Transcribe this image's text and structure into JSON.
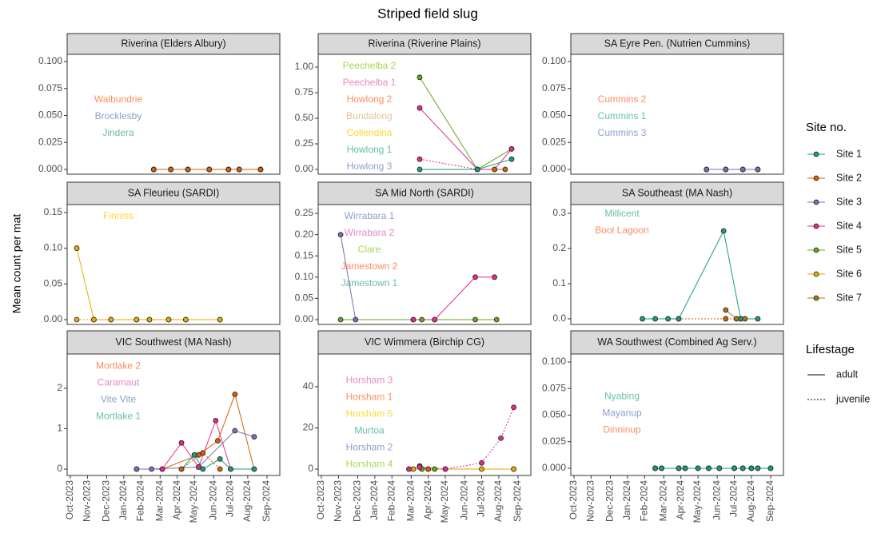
{
  "title": "Striped field slug",
  "y_label": "Mean count per mat",
  "xlim": [
    2023.735,
    2024.73
  ],
  "xticks": [
    {
      "value": 2023.75,
      "label": "Oct-2023"
    },
    {
      "value": 2023.83,
      "label": "Nov-2023"
    },
    {
      "value": 2023.92,
      "label": "Dec-2023"
    },
    {
      "value": 2024,
      "label": "Jan-2024"
    },
    {
      "value": 2024.08,
      "label": "Feb-2024"
    },
    {
      "value": 2024.17,
      "label": "Mar-2024"
    },
    {
      "value": 2024.25,
      "label": "Apr-2024"
    },
    {
      "value": 2024.33,
      "label": "May-2024"
    },
    {
      "value": 2024.42,
      "label": "Jun-2024"
    },
    {
      "value": 2024.5,
      "label": "Jul-2024"
    },
    {
      "value": 2024.58,
      "label": "Aug-2024"
    },
    {
      "value": 2024.67,
      "label": "Sep-2024"
    }
  ],
  "legend": {
    "title": "Site no.",
    "items": [
      {
        "name": "Site 1",
        "color": "#1b9e77"
      },
      {
        "name": "Site 2",
        "color": "#d95f02"
      },
      {
        "name": "Site 3",
        "color": "#7570b3"
      },
      {
        "name": "Site 4",
        "color": "#e7298a"
      },
      {
        "name": "Site 5",
        "color": "#66a61e"
      },
      {
        "name": "Site 6",
        "color": "#e6ab02"
      },
      {
        "name": "Site 7",
        "color": "#a6761d"
      }
    ]
  },
  "lifestage_legend": {
    "title": "Lifestage",
    "items": [
      {
        "name": "adult",
        "dash": false
      },
      {
        "name": "juvenile",
        "dash": true
      }
    ]
  },
  "chart_data": [
    {
      "type": "line",
      "title": "Riverina (Elders Albury)",
      "ylim": [
        -0.0044,
        0.1067
      ],
      "yticks": [
        {
          "value": 0,
          "label": "0.000"
        },
        {
          "value": 0.025,
          "label": "0.025"
        },
        {
          "value": 0.05,
          "label": "0.050"
        },
        {
          "value": 0.075,
          "label": "0.075"
        },
        {
          "value": 0.1,
          "label": "0.100"
        }
      ],
      "labels": [
        {
          "text": "Walbundrie",
          "color": "#fc8d62"
        },
        {
          "text": "Brocklesby",
          "color": "#8da0cb"
        },
        {
          "text": "Jindera",
          "color": "#66c2a5"
        }
      ],
      "series": [
        {
          "name": "Site 1",
          "lifestage": "adult",
          "x": [
            2024.14,
            2024.22,
            2024.3,
            2024.4,
            2024.49,
            2024.54,
            2024.64
          ],
          "values": [
            0,
            0,
            0,
            0,
            0,
            0,
            0
          ]
        },
        {
          "name": "Site 3",
          "lifestage": "adult",
          "x": [
            2024.14,
            2024.22,
            2024.3,
            2024.4,
            2024.49,
            2024.54,
            2024.64
          ],
          "values": [
            0,
            0,
            0,
            0,
            0,
            0,
            0
          ]
        },
        {
          "name": "Site 2",
          "lifestage": "adult",
          "x": [
            2024.14,
            2024.22,
            2024.3,
            2024.4,
            2024.49,
            2024.54,
            2024.64
          ],
          "values": [
            0,
            0,
            0,
            0,
            0,
            0,
            0
          ]
        }
      ]
    },
    {
      "type": "line",
      "title": "Riverina (Riverine Plains)",
      "ylim": [
        -0.047,
        1.125
      ],
      "yticks": [
        {
          "value": 0,
          "label": "0.00"
        },
        {
          "value": 0.25,
          "label": "0.25"
        },
        {
          "value": 0.5,
          "label": "0.50"
        },
        {
          "value": 0.75,
          "label": "0.75"
        },
        {
          "value": 1,
          "label": "1.00"
        }
      ],
      "labels": [
        {
          "text": "Peechelba 2",
          "color": "#a6d854"
        },
        {
          "text": "Peechelba 1",
          "color": "#e78ac3"
        },
        {
          "text": "Howlong 2",
          "color": "#fc8d62"
        },
        {
          "text": "Bundalong",
          "color": "#e5c494"
        },
        {
          "text": "Collendina",
          "color": "#ffd92f"
        },
        {
          "text": "Howlong 1",
          "color": "#66c2a5"
        },
        {
          "text": "Howlong 3",
          "color": "#8da0cb"
        }
      ],
      "series": [
        {
          "name": "Site 5",
          "lifestage": "adult",
          "x": [
            2024.21,
            2024.48,
            2024.64
          ],
          "values": [
            0.9,
            0,
            0.2
          ]
        },
        {
          "name": "Site 4",
          "lifestage": "adult",
          "x": [
            2024.21,
            2024.48,
            2024.56,
            2024.64
          ],
          "values": [
            0.6,
            0,
            0,
            0.2
          ]
        },
        {
          "name": "Site 4",
          "lifestage": "juvenile",
          "x": [
            2024.21,
            2024.48
          ],
          "values": [
            0.1,
            0
          ]
        },
        {
          "name": "Site 1",
          "lifestage": "adult",
          "x": [
            2024.21,
            2024.48,
            2024.64
          ],
          "values": [
            0,
            0,
            0.1
          ]
        },
        {
          "name": "Site 2",
          "lifestage": "adult",
          "x": [
            2024.56,
            2024.61
          ],
          "values": [
            0,
            0
          ]
        }
      ]
    },
    {
      "type": "line",
      "title": "SA Eyre Pen. (Nutrien Cummins)",
      "ylim": [
        -0.0044,
        0.1067
      ],
      "yticks": [
        {
          "value": 0,
          "label": "0.000"
        },
        {
          "value": 0.025,
          "label": "0.025"
        },
        {
          "value": 0.05,
          "label": "0.050"
        },
        {
          "value": 0.075,
          "label": "0.075"
        },
        {
          "value": 0.1,
          "label": "0.100"
        }
      ],
      "labels": [
        {
          "text": "Cummins 2",
          "color": "#fc8d62"
        },
        {
          "text": "Cummins 1",
          "color": "#66c2a5"
        },
        {
          "text": "Cummins 3",
          "color": "#8da0cb"
        }
      ],
      "series": [
        {
          "name": "Site 1",
          "lifestage": "adult",
          "x": [
            2024.37,
            2024.46,
            2024.54,
            2024.61
          ],
          "values": [
            0,
            0,
            0,
            0
          ]
        },
        {
          "name": "Site 3",
          "lifestage": "adult",
          "x": [
            2024.37,
            2024.46,
            2024.54,
            2024.61
          ],
          "values": [
            0,
            0,
            0,
            0
          ]
        }
      ]
    },
    {
      "type": "line",
      "title": "SA Fleurieu (SARDI)",
      "ylim": [
        -0.0067,
        0.161
      ],
      "yticks": [
        {
          "value": 0,
          "label": "0.00"
        },
        {
          "value": 0.05,
          "label": "0.05"
        },
        {
          "value": 0.1,
          "label": "0.10"
        },
        {
          "value": 0.15,
          "label": "0.15"
        }
      ],
      "labels": [
        {
          "text": "Finniss",
          "color": "#ffd92f"
        }
      ],
      "series": [
        {
          "name": "Site 6",
          "lifestage": "adult",
          "x": [
            2023.78,
            2023.86,
            2023.94,
            2024.06,
            2024.12,
            2024.21,
            2024.29,
            2024.45
          ],
          "values": [
            0.1,
            0,
            0,
            0,
            0,
            0,
            0,
            0
          ]
        },
        {
          "name": "Site 6",
          "lifestage": "juvenile",
          "x": [
            2023.78,
            2023.86,
            2023.94,
            2024.06,
            2024.12,
            2024.21,
            2024.29,
            2024.45
          ],
          "values": [
            0,
            0,
            0,
            0,
            0,
            0,
            0,
            0
          ]
        }
      ]
    },
    {
      "type": "line",
      "title": "SA Mid North (SARDI)",
      "ylim": [
        -0.0113,
        0.2707
      ],
      "yticks": [
        {
          "value": 0,
          "label": "0.00"
        },
        {
          "value": 0.05,
          "label": "0.05"
        },
        {
          "value": 0.1,
          "label": "0.10"
        },
        {
          "value": 0.15,
          "label": "0.15"
        },
        {
          "value": 0.2,
          "label": "0.20"
        },
        {
          "value": 0.25,
          "label": "0.25"
        }
      ],
      "labels": [
        {
          "text": "Wirrabara 1",
          "color": "#8da0cb"
        },
        {
          "text": "Wirrabara 2",
          "color": "#e78ac3"
        },
        {
          "text": "Clare",
          "color": "#a6d854"
        },
        {
          "text": "Jamestown 2",
          "color": "#fc8d62"
        },
        {
          "text": "Jamestown 1",
          "color": "#66c2a5"
        }
      ],
      "series": [
        {
          "name": "Site 5",
          "lifestage": "adult",
          "x": [
            2023.84,
            2024.18,
            2024.22,
            2024.28,
            2024.47,
            2024.57
          ],
          "values": [
            0,
            0,
            0,
            0,
            0,
            0
          ]
        },
        {
          "name": "Site 3",
          "lifestage": "adult",
          "x": [
            2023.84,
            2023.91
          ],
          "values": [
            0.2,
            0
          ]
        },
        {
          "name": "Site 4",
          "lifestage": "adult",
          "x": [
            2024.18,
            2024.28,
            2024.47,
            2024.56
          ],
          "values": [
            0,
            0,
            0.1,
            0.1
          ]
        }
      ]
    },
    {
      "type": "line",
      "title": "SA Southeast (MA Nash)",
      "ylim": [
        -0.016,
        0.325
      ],
      "yticks": [
        {
          "value": 0,
          "label": "0.0"
        },
        {
          "value": 0.1,
          "label": "0.1"
        },
        {
          "value": 0.2,
          "label": "0.2"
        },
        {
          "value": 0.3,
          "label": "0.3"
        }
      ],
      "labels": [
        {
          "text": "Millicent",
          "color": "#66c2a5"
        },
        {
          "text": "Bool Lagoon",
          "color": "#fc8d62"
        }
      ],
      "series": [
        {
          "name": "Site 2",
          "lifestage": "juvenile",
          "x": [
            2024.24,
            2024.46,
            2024.53
          ],
          "values": [
            0,
            0,
            0
          ]
        },
        {
          "name": "Site 1",
          "lifestage": "adult",
          "x": [
            2024.07,
            2024.13,
            2024.19,
            2024.24,
            2024.45,
            2024.53,
            2024.61
          ],
          "values": [
            0,
            0,
            0,
            0,
            0.25,
            0,
            0
          ]
        },
        {
          "name": "Site 7",
          "lifestage": "adult",
          "x": [
            2024.46,
            2024.51,
            2024.55
          ],
          "values": [
            0.025,
            0,
            0
          ]
        }
      ]
    },
    {
      "type": "line",
      "title": "VIC Southwest (MA Nash)",
      "ylim": [
        -0.158,
        2.85
      ],
      "yticks": [
        0,
        1,
        2
      ],
      "labels": [
        {
          "text": "Mortlake 2",
          "color": "#fc8d62"
        },
        {
          "text": "Caramaut",
          "color": "#e78ac3"
        },
        {
          "text": "Vite Vite",
          "color": "#8da0cb"
        },
        {
          "text": "Mortlake 1",
          "color": "#66c2a5"
        }
      ],
      "series": [
        {
          "name": "Site 2",
          "lifestage": "adult",
          "x": [
            2024.06,
            2024.18,
            2024.35,
            2024.44,
            2024.52,
            2024.61
          ],
          "values": [
            0,
            0,
            0.35,
            0.7,
            1.85,
            0
          ]
        },
        {
          "name": "Site 3",
          "lifestage": "adult",
          "x": [
            2024.06,
            2024.13,
            2024.35,
            2024.52,
            2024.61
          ],
          "values": [
            0,
            0,
            0.05,
            0.95,
            0.8
          ]
        },
        {
          "name": "Site 4",
          "lifestage": "adult",
          "x": [
            2024.18,
            2024.27,
            2024.35,
            2024.43,
            2024.5
          ],
          "values": [
            0,
            0.65,
            0.05,
            1.2,
            0
          ]
        },
        {
          "name": "Site 1",
          "lifestage": "adult",
          "x": [
            2024.27,
            2024.33,
            2024.37,
            2024.45,
            2024.5,
            2024.61
          ],
          "values": [
            0,
            0.35,
            0,
            0.25,
            0,
            0
          ]
        },
        {
          "name": "Site 2",
          "lifestage": "juvenile",
          "x": [
            2024.27,
            2024.37,
            2024.45
          ],
          "values": [
            0,
            0.4,
            0
          ]
        }
      ]
    },
    {
      "type": "line",
      "title": "VIC Wimmera (Birchip CG)",
      "ylim": [
        -3.1,
        55.9
      ],
      "yticks": [
        0,
        20,
        40
      ],
      "labels": [
        {
          "text": "Horsham 3",
          "color": "#e78ac3"
        },
        {
          "text": "Horsham 1",
          "color": "#fc8d62"
        },
        {
          "text": "Horsham 5",
          "color": "#ffd92f"
        },
        {
          "text": "Murtoa",
          "color": "#66c2a5"
        },
        {
          "text": "Horsham 2",
          "color": "#8da0cb"
        },
        {
          "text": "Horsham 4",
          "color": "#a6d854"
        }
      ],
      "series": [
        {
          "name": "Site 5",
          "lifestage": "adult",
          "x": [
            2024.16,
            2024.22,
            2024.28,
            2024.65
          ],
          "values": [
            0,
            0,
            0,
            0
          ]
        },
        {
          "name": "Site 6",
          "lifestage": "adult",
          "x": [
            2024.18,
            2024.25,
            2024.33,
            2024.5,
            2024.65
          ],
          "values": [
            0,
            0,
            0,
            0,
            0
          ]
        },
        {
          "name": "Site 2",
          "lifestage": "adult",
          "x": [
            2024.21,
            2024.25
          ],
          "values": [
            1.5,
            0
          ]
        },
        {
          "name": "Site 4",
          "lifestage": "juvenile",
          "x": [
            2024.16,
            2024.21,
            2024.33,
            2024.5,
            2024.59,
            2024.65
          ],
          "values": [
            0,
            1,
            0,
            3,
            15,
            30
          ]
        }
      ]
    },
    {
      "type": "line",
      "title": "WA Southwest (Combined Ag Serv.)",
      "ylim": [
        -0.0068,
        0.1075
      ],
      "yticks": [
        {
          "value": 0,
          "label": "0.000"
        },
        {
          "value": 0.025,
          "label": "0.025"
        },
        {
          "value": 0.05,
          "label": "0.050"
        },
        {
          "value": 0.075,
          "label": "0.075"
        },
        {
          "value": 0.1,
          "label": "0.100"
        }
      ],
      "labels": [
        {
          "text": "Nyabing",
          "color": "#66c2a5"
        },
        {
          "text": "Mayanup",
          "color": "#8da0cb"
        },
        {
          "text": "Dinninup",
          "color": "#fc8d62"
        }
      ],
      "series": [
        {
          "name": "Site 3",
          "lifestage": "adult",
          "x": [
            2024.13,
            2024.16,
            2024.24,
            2024.27,
            2024.33,
            2024.38,
            2024.43,
            2024.5,
            2024.54,
            2024.58,
            2024.61,
            2024.67
          ],
          "values": [
            0,
            0,
            0,
            0,
            0,
            0,
            0,
            0,
            0,
            0,
            0,
            0
          ]
        },
        {
          "name": "Site 1",
          "lifestage": "adult",
          "x": [
            2024.13,
            2024.16,
            2024.24,
            2024.27,
            2024.33,
            2024.38,
            2024.43,
            2024.5,
            2024.54,
            2024.58,
            2024.61,
            2024.67
          ],
          "values": [
            0,
            0,
            0,
            0,
            0,
            0,
            0,
            0,
            0,
            0,
            0,
            0
          ]
        }
      ]
    }
  ]
}
